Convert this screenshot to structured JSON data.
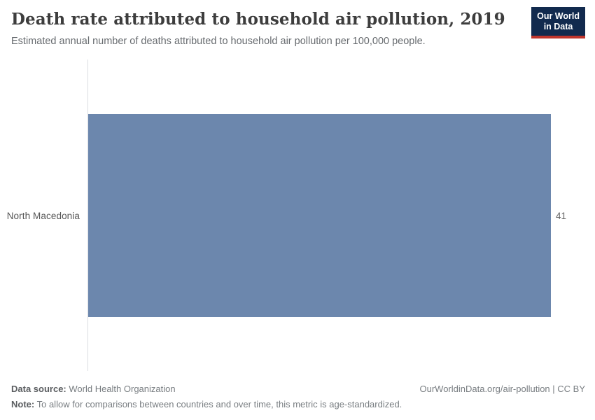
{
  "header": {
    "title": "Death rate attributed to household air pollution, 2019",
    "subtitle": "Estimated annual number of deaths attributed to household air pollution per 100,000 people.",
    "logo_line1": "Our World",
    "logo_line2": "in Data"
  },
  "chart_data": {
    "type": "bar",
    "orientation": "horizontal",
    "title": "Death rate attributed to household air pollution, 2019",
    "subtitle": "Estimated annual number of deaths attributed to household air pollution per 100,000 people.",
    "categories": [
      "North Macedonia"
    ],
    "values": [
      41
    ],
    "value_labels": [
      "41"
    ],
    "xlabel": "",
    "ylabel": "",
    "xlim": [
      0,
      41
    ],
    "grid": false,
    "legend": false,
    "bar_color": "#6c87ad"
  },
  "footer": {
    "data_source_label": "Data source:",
    "data_source_value": "World Health Organization",
    "attribution": "OurWorldinData.org/air-pollution | CC BY",
    "note_label": "Note:",
    "note_value": "To allow for comparisons between countries and over time, this metric is age-standardized."
  },
  "colors": {
    "bar": "#6c87ad",
    "logo_background": "#122a4e",
    "logo_accent_red": "#c0352c",
    "title_text": "#3d3d3d",
    "axis_line": "#dadde0"
  }
}
